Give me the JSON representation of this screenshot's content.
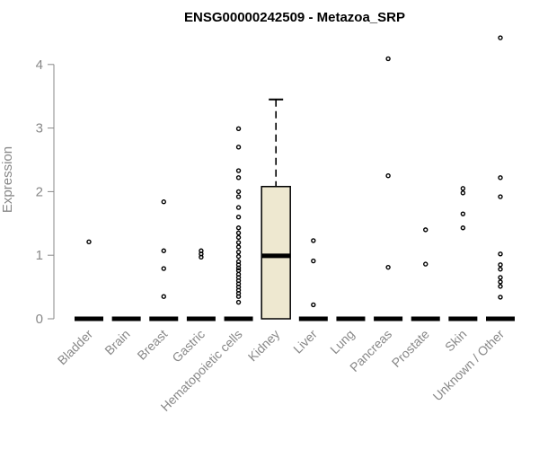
{
  "chart_data": {
    "type": "boxplot",
    "title": "ENSG00000242509 - Metazoa_SRP",
    "ylabel": "Expression",
    "ylim": [
      0,
      4.5
    ],
    "yticks": [
      0,
      1,
      2,
      3,
      4
    ],
    "categories": [
      "Bladder",
      "Brain",
      "Breast",
      "Gastric",
      "Hematopoietic cells",
      "Kidney",
      "Liver",
      "Lung",
      "Pancreas",
      "Prostate",
      "Skin",
      "Unknown / Other"
    ],
    "boxes": [
      {
        "category": "Bladder",
        "median": 0,
        "q1": 0,
        "q3": 0,
        "whisker_low": 0,
        "whisker_high": 0,
        "outliers": [
          1.21
        ]
      },
      {
        "category": "Brain",
        "median": 0,
        "q1": 0,
        "q3": 0,
        "whisker_low": 0,
        "whisker_high": 0,
        "outliers": []
      },
      {
        "category": "Breast",
        "median": 0,
        "q1": 0,
        "q3": 0,
        "whisker_low": 0,
        "whisker_high": 0,
        "outliers": [
          1.84,
          1.07,
          0.79,
          0.35
        ]
      },
      {
        "category": "Gastric",
        "median": 0,
        "q1": 0,
        "q3": 0,
        "whisker_low": 0,
        "whisker_high": 0,
        "outliers": [
          1.07,
          1.02,
          0.97
        ]
      },
      {
        "category": "Hematopoietic cells",
        "median": 0,
        "q1": 0,
        "q3": 0,
        "whisker_low": 0,
        "whisker_high": 0,
        "outliers": [
          2.99,
          2.7,
          2.33,
          2.22,
          2.0,
          1.92,
          1.75,
          1.6,
          1.43,
          1.35,
          1.28,
          1.2,
          1.13,
          1.05,
          0.98,
          0.9,
          0.85,
          0.8,
          0.76,
          0.7,
          0.65,
          0.6,
          0.55,
          0.5,
          0.45,
          0.4,
          0.35,
          0.26
        ]
      },
      {
        "category": "Kidney",
        "median": 0.99,
        "q1": 0,
        "q3": 2.08,
        "whisker_low": 0,
        "whisker_high": 3.45,
        "outliers": []
      },
      {
        "category": "Liver",
        "median": 0,
        "q1": 0,
        "q3": 0,
        "whisker_low": 0,
        "whisker_high": 0,
        "outliers": [
          1.23,
          0.91,
          0.22
        ]
      },
      {
        "category": "Lung",
        "median": 0,
        "q1": 0,
        "q3": 0,
        "whisker_low": 0,
        "whisker_high": 0,
        "outliers": []
      },
      {
        "category": "Pancreas",
        "median": 0,
        "q1": 0,
        "q3": 0,
        "whisker_low": 0,
        "whisker_high": 0,
        "outliers": [
          4.09,
          2.25,
          0.81
        ]
      },
      {
        "category": "Prostate",
        "median": 0,
        "q1": 0,
        "q3": 0,
        "whisker_low": 0,
        "whisker_high": 0,
        "outliers": [
          1.4,
          0.86
        ]
      },
      {
        "category": "Skin",
        "median": 0,
        "q1": 0,
        "q3": 0,
        "whisker_low": 0,
        "whisker_high": 0,
        "outliers": [
          2.05,
          1.98,
          1.65,
          1.43
        ]
      },
      {
        "category": "Unknown / Other",
        "median": 0,
        "q1": 0,
        "q3": 0,
        "whisker_low": 0,
        "whisker_high": 0,
        "outliers": [
          4.42,
          2.22,
          1.92,
          1.02,
          0.85,
          0.78,
          0.65,
          0.58,
          0.51,
          0.34
        ]
      }
    ],
    "highlight_color": "#EEE8D0",
    "grid": false,
    "legend": "none"
  }
}
